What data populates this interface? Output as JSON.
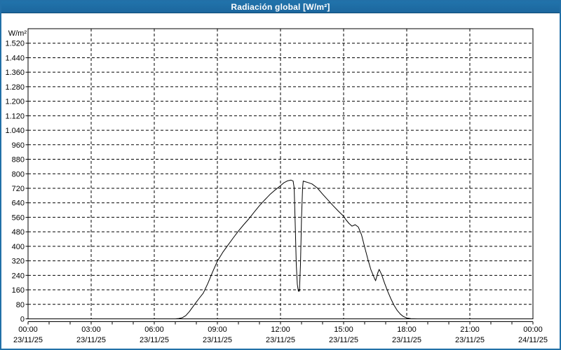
{
  "window": {
    "title": "Radiación global [W/m²]"
  },
  "colors": {
    "titlebar": "#2173ab",
    "titlebar2": "#1c679e",
    "titlebar_edge": "#0e4c77",
    "window_border": "#2270a8",
    "plot_line": "#000000",
    "grid": "#000000",
    "background": "#ffffff",
    "title_text": "#ffffff",
    "label_text": "#000000"
  },
  "chart_data": {
    "type": "line",
    "title": "Radiación global [W/m²]",
    "ylabel_unit": "W/m²",
    "ylim": [
      0,
      1600
    ],
    "xlim_hours": [
      0,
      24
    ],
    "grid": "dashed",
    "minor_xtick_hours": 1,
    "yticks": [
      {
        "v": 0,
        "label": "0"
      },
      {
        "v": 80,
        "label": "80"
      },
      {
        "v": 160,
        "label": "160"
      },
      {
        "v": 240,
        "label": "240"
      },
      {
        "v": 320,
        "label": "320"
      },
      {
        "v": 400,
        "label": "400"
      },
      {
        "v": 480,
        "label": "480"
      },
      {
        "v": 560,
        "label": "560"
      },
      {
        "v": 640,
        "label": "640"
      },
      {
        "v": 720,
        "label": "720"
      },
      {
        "v": 800,
        "label": "800"
      },
      {
        "v": 880,
        "label": "880"
      },
      {
        "v": 960,
        "label": "960"
      },
      {
        "v": 1040,
        "label": "1.040"
      },
      {
        "v": 1120,
        "label": "1.120"
      },
      {
        "v": 1200,
        "label": "1.200"
      },
      {
        "v": 1280,
        "label": "1.280"
      },
      {
        "v": 1360,
        "label": "1.360"
      },
      {
        "v": 1440,
        "label": "1.440"
      },
      {
        "v": 1520,
        "label": "1.520"
      }
    ],
    "xticks": [
      {
        "h": 0,
        "time": "00:00",
        "date": "23/11/25"
      },
      {
        "h": 3,
        "time": "03:00",
        "date": "23/11/25"
      },
      {
        "h": 6,
        "time": "06:00",
        "date": "23/11/25"
      },
      {
        "h": 9,
        "time": "09:00",
        "date": "23/11/25"
      },
      {
        "h": 12,
        "time": "12:00",
        "date": "23/11/25"
      },
      {
        "h": 15,
        "time": "15:00",
        "date": "23/11/25"
      },
      {
        "h": 18,
        "time": "18:00",
        "date": "23/11/25"
      },
      {
        "h": 21,
        "time": "21:00",
        "date": "23/11/25"
      },
      {
        "h": 24,
        "time": "00:00",
        "date": "24/11/25"
      }
    ],
    "series": [
      {
        "name": "Radiación global",
        "unit": "W/m²",
        "points": [
          [
            0,
            0
          ],
          [
            0.5,
            0
          ],
          [
            1,
            0
          ],
          [
            1.5,
            0
          ],
          [
            2,
            0
          ],
          [
            2.5,
            0
          ],
          [
            3,
            0
          ],
          [
            3.5,
            0
          ],
          [
            4,
            0
          ],
          [
            4.5,
            0
          ],
          [
            5,
            0
          ],
          [
            5.5,
            0
          ],
          [
            6,
            0
          ],
          [
            6.5,
            0
          ],
          [
            7,
            0
          ],
          [
            7.17,
            2
          ],
          [
            7.33,
            6
          ],
          [
            7.5,
            18
          ],
          [
            7.67,
            40
          ],
          [
            7.83,
            66
          ],
          [
            7.97,
            88
          ],
          [
            8.1,
            108
          ],
          [
            8.33,
            142
          ],
          [
            8.55,
            196
          ],
          [
            8.77,
            258
          ],
          [
            9,
            318
          ],
          [
            9.25,
            366
          ],
          [
            9.5,
            406
          ],
          [
            9.75,
            446
          ],
          [
            10,
            484
          ],
          [
            10.25,
            519
          ],
          [
            10.5,
            552
          ],
          [
            10.75,
            589
          ],
          [
            11,
            624
          ],
          [
            11.25,
            656
          ],
          [
            11.5,
            686
          ],
          [
            11.75,
            711
          ],
          [
            12,
            734
          ],
          [
            12.17,
            751
          ],
          [
            12.33,
            761
          ],
          [
            12.5,
            765
          ],
          [
            12.6,
            760
          ],
          [
            12.65,
            722
          ],
          [
            12.7,
            520
          ],
          [
            12.75,
            300
          ],
          [
            12.8,
            190
          ],
          [
            12.85,
            152
          ],
          [
            12.88,
            162
          ],
          [
            12.9,
            152
          ],
          [
            12.95,
            300
          ],
          [
            13,
            560
          ],
          [
            13.05,
            722
          ],
          [
            13.08,
            760
          ],
          [
            13.15,
            757
          ],
          [
            13.3,
            752
          ],
          [
            13.5,
            744
          ],
          [
            13.75,
            722
          ],
          [
            14,
            688
          ],
          [
            14.25,
            656
          ],
          [
            14.5,
            624
          ],
          [
            14.75,
            594
          ],
          [
            15,
            566
          ],
          [
            15.1,
            548
          ],
          [
            15.25,
            527
          ],
          [
            15.4,
            511
          ],
          [
            15.55,
            519
          ],
          [
            15.7,
            506
          ],
          [
            15.85,
            464
          ],
          [
            16,
            396
          ],
          [
            16.15,
            330
          ],
          [
            16.3,
            270
          ],
          [
            16.45,
            228
          ],
          [
            16.52,
            210
          ],
          [
            16.62,
            252
          ],
          [
            16.69,
            273
          ],
          [
            16.8,
            246
          ],
          [
            16.95,
            196
          ],
          [
            17.1,
            150
          ],
          [
            17.25,
            110
          ],
          [
            17.4,
            74
          ],
          [
            17.55,
            46
          ],
          [
            17.7,
            26
          ],
          [
            17.85,
            12
          ],
          [
            18,
            5
          ],
          [
            18.2,
            1
          ],
          [
            18.5,
            0
          ],
          [
            19,
            0
          ],
          [
            19.5,
            0
          ],
          [
            20,
            0
          ],
          [
            20.5,
            0
          ],
          [
            21,
            0
          ],
          [
            21.5,
            0
          ],
          [
            22,
            0
          ],
          [
            22.5,
            0
          ],
          [
            23,
            0
          ],
          [
            23.5,
            0
          ],
          [
            24,
            0
          ]
        ]
      }
    ]
  }
}
